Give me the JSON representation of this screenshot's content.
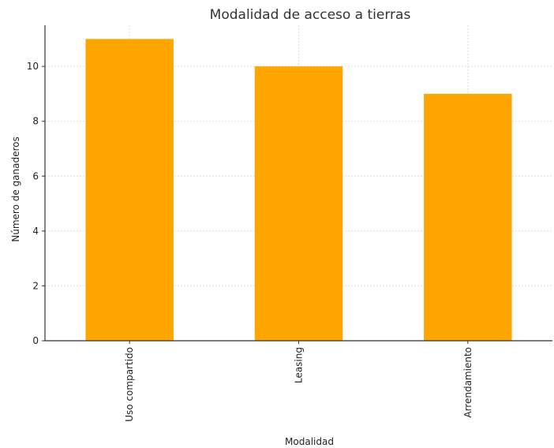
{
  "chart_data": {
    "type": "bar",
    "title": "Modalidad de acceso a tierras",
    "xlabel": "Modalidad",
    "ylabel": "Número de ganaderos",
    "categories": [
      "Uso compartido",
      "Leasing",
      "Arrendamiento"
    ],
    "values": [
      11,
      10,
      9
    ],
    "ylim": [
      0,
      11.5
    ],
    "yticks": [
      0,
      2,
      4,
      6,
      8,
      10
    ],
    "grid": true,
    "bar_color": "#FFA500"
  }
}
